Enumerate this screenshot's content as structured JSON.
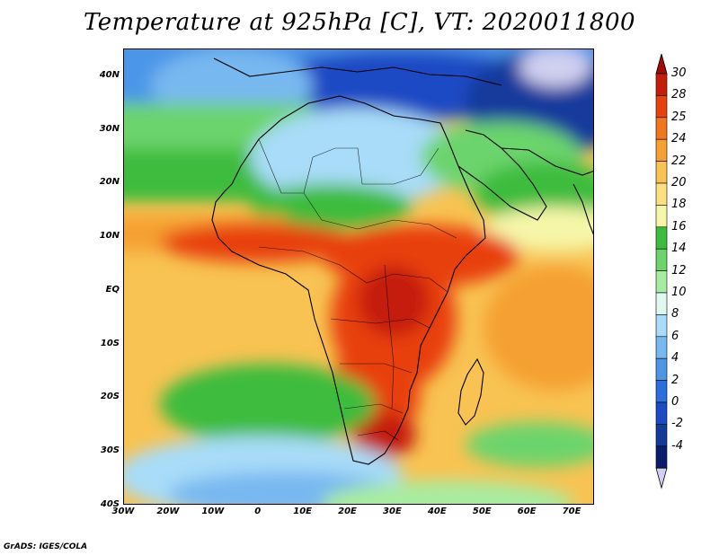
{
  "title": "Temperature at 925hPa [C], VT: 2020011800",
  "credit": "GrADS: IGES/COLA",
  "map": {
    "lon_range": [
      -30,
      75
    ],
    "lat_range": [
      -40,
      45
    ],
    "lat_ticks": [
      {
        "value": 40,
        "label": "40N"
      },
      {
        "value": 30,
        "label": "30N"
      },
      {
        "value": 20,
        "label": "20N"
      },
      {
        "value": 10,
        "label": "10N"
      },
      {
        "value": 0,
        "label": "EQ"
      },
      {
        "value": -10,
        "label": "10S"
      },
      {
        "value": -20,
        "label": "20S"
      },
      {
        "value": -30,
        "label": "30S"
      },
      {
        "value": -40,
        "label": "40S"
      }
    ],
    "lon_ticks": [
      {
        "value": -30,
        "label": "30W"
      },
      {
        "value": -20,
        "label": "20W"
      },
      {
        "value": -10,
        "label": "10W"
      },
      {
        "value": 0,
        "label": "0"
      },
      {
        "value": 10,
        "label": "10E"
      },
      {
        "value": 20,
        "label": "20E"
      },
      {
        "value": 30,
        "label": "30E"
      },
      {
        "value": 40,
        "label": "40E"
      },
      {
        "value": 50,
        "label": "50E"
      },
      {
        "value": 60,
        "label": "60E"
      },
      {
        "value": 70,
        "label": "70E"
      }
    ]
  },
  "colorbar": {
    "levels": [
      {
        "label": "30",
        "color": "#c41e0a"
      },
      {
        "label": "28",
        "color": "#e8410e"
      },
      {
        "label": "25",
        "color": "#f2761b"
      },
      {
        "label": "24",
        "color": "#f5a031"
      },
      {
        "label": "22",
        "color": "#f8c352"
      },
      {
        "label": "20",
        "color": "#fbe080"
      },
      {
        "label": "18",
        "color": "#f6f6a8"
      },
      {
        "label": "16",
        "color": "#3cbc3c"
      },
      {
        "label": "14",
        "color": "#6cd46c"
      },
      {
        "label": "12",
        "color": "#a8eca0"
      },
      {
        "label": "10",
        "color": "#e0f8f0"
      },
      {
        "label": "8",
        "color": "#a8dcf8"
      },
      {
        "label": "6",
        "color": "#78b8f0"
      },
      {
        "label": "4",
        "color": "#4c96e8"
      },
      {
        "label": "2",
        "color": "#2c6edc"
      },
      {
        "label": "0",
        "color": "#1a4ac4"
      },
      {
        "label": "-2",
        "color": "#143a9c"
      },
      {
        "label": "-4",
        "color": "#0c1c6c"
      }
    ],
    "top_arrow_color": "#a00a0a",
    "bottom_arrow_color": "#d0d0f0"
  },
  "colors": {
    "cold_north": "#1a4ac4",
    "ocean_mid": "#f8c352",
    "interior_hot": "#e8410e",
    "south_ocean": "#a8dcf8"
  }
}
